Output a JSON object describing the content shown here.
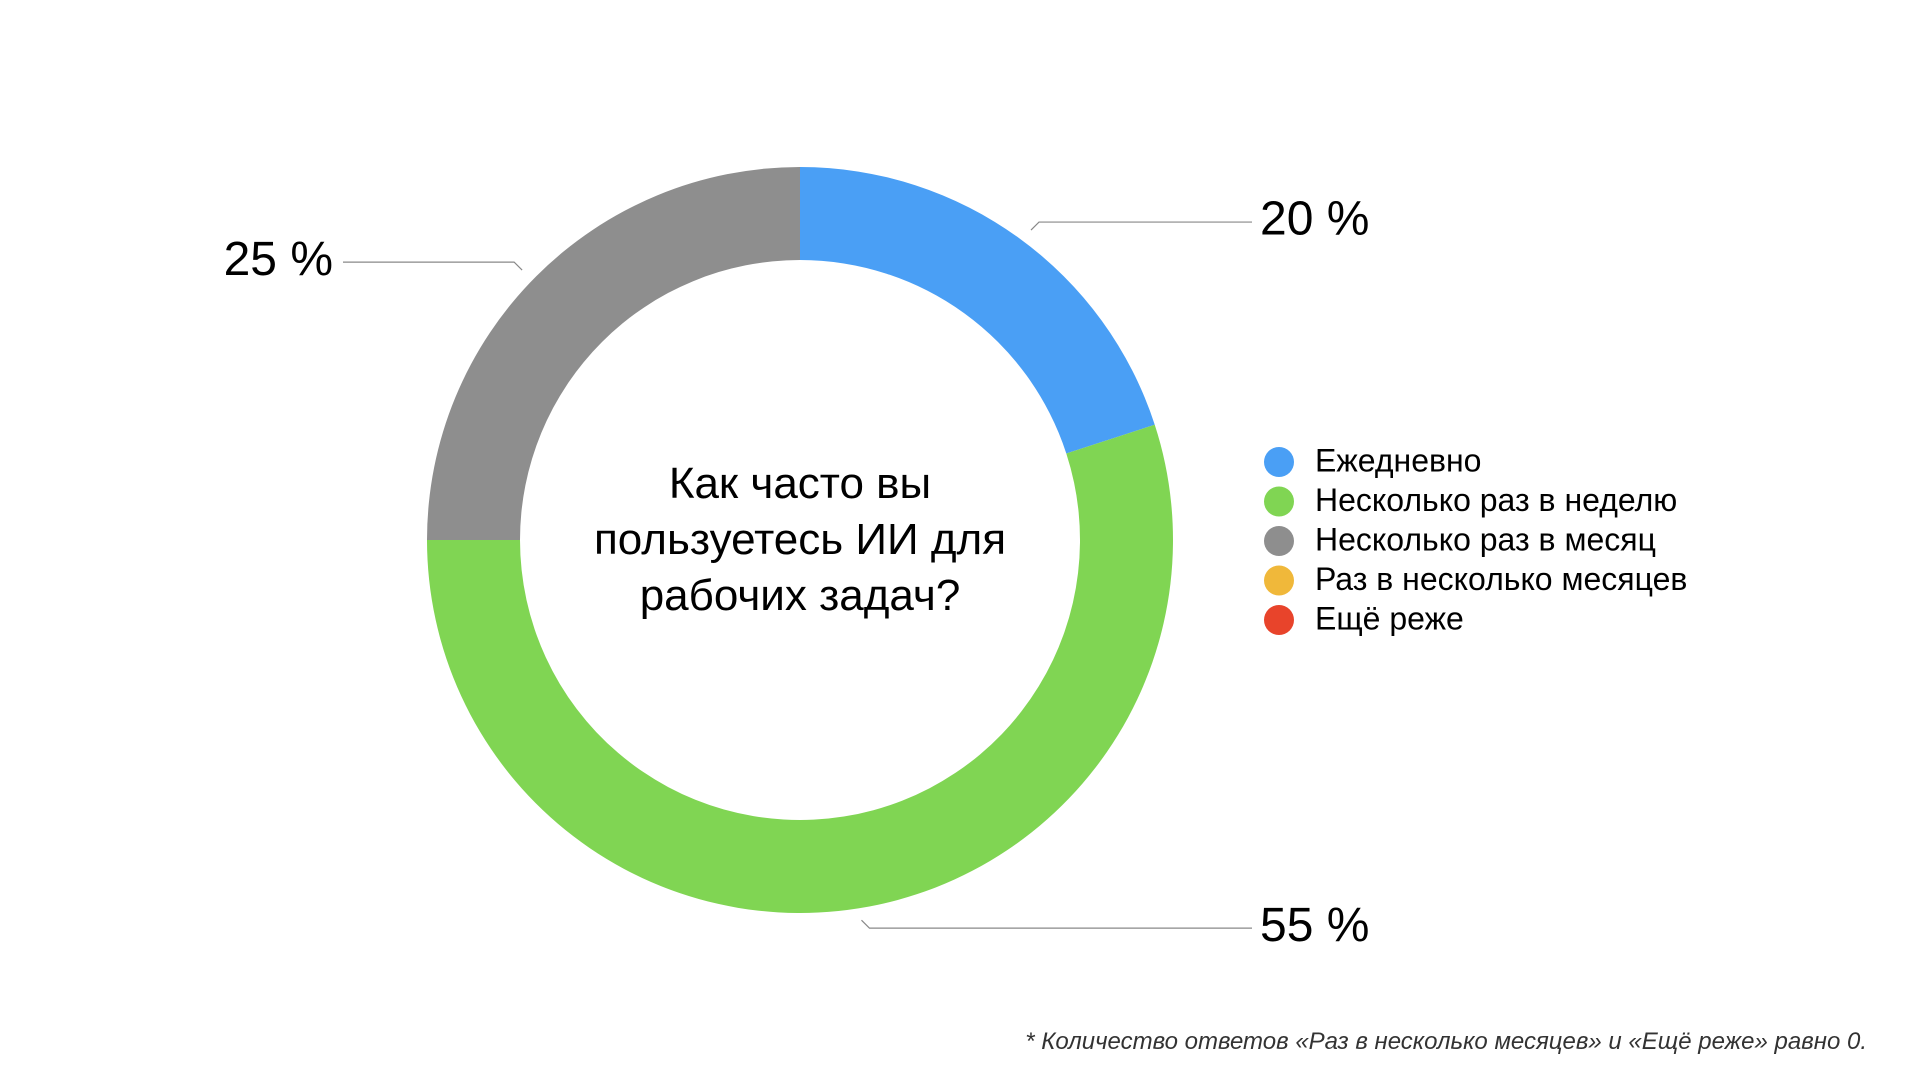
{
  "chart_data": {
    "type": "donut",
    "title": "Как часто вы пользуетесь ИИ для рабочих задач?",
    "categories": [
      "Ежедневно",
      "Несколько раз в неделю",
      "Несколько раз в месяц",
      "Раз в несколько месяцев",
      "Ещё реже"
    ],
    "values": [
      20,
      55,
      25,
      0,
      0
    ],
    "value_labels": [
      "20 %",
      "55 %",
      "25 %",
      null,
      null
    ],
    "colors": [
      "#4a9ff5",
      "#80d553",
      "#8e8e8e",
      "#f0b83a",
      "#e8442b"
    ],
    "note": "* Количество ответов «Раз в несколько месяцев» и «Ещё реже» равно 0."
  }
}
